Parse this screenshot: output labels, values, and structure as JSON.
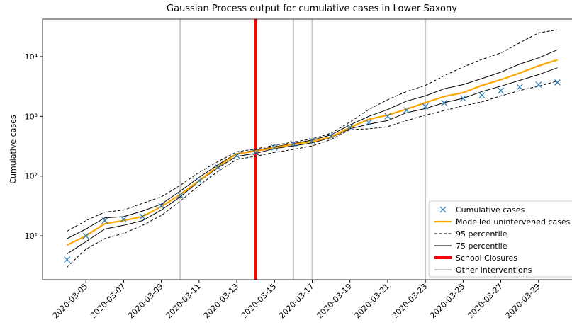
{
  "chart_data": {
    "type": "line",
    "title": "Gaussian Process output for cumulative cases in Lower Saxony",
    "ylabel": "Cumulative cases",
    "yscale": "log",
    "x": [
      "2020-03-04",
      "2020-03-05",
      "2020-03-06",
      "2020-03-07",
      "2020-03-08",
      "2020-03-09",
      "2020-03-10",
      "2020-03-11",
      "2020-03-12",
      "2020-03-13",
      "2020-03-14",
      "2020-03-15",
      "2020-03-16",
      "2020-03-17",
      "2020-03-18",
      "2020-03-19",
      "2020-03-20",
      "2020-03-21",
      "2020-03-22",
      "2020-03-23",
      "2020-03-24",
      "2020-03-25",
      "2020-03-26",
      "2020-03-27",
      "2020-03-28",
      "2020-03-29",
      "2020-03-30"
    ],
    "xticks": [
      "2020-03-05",
      "2020-03-07",
      "2020-03-09",
      "2020-03-11",
      "2020-03-13",
      "2020-03-15",
      "2020-03-17",
      "2020-03-19",
      "2020-03-21",
      "2020-03-23",
      "2020-03-25",
      "2020-03-27",
      "2020-03-29"
    ],
    "ylim": [
      1.85,
      42400
    ],
    "yticks": [
      {
        "value": 10,
        "label": "10¹"
      },
      {
        "value": 100,
        "label": "10²"
      },
      {
        "value": 1000,
        "label": "10³"
      },
      {
        "value": 10000,
        "label": "10⁴"
      }
    ],
    "series": [
      {
        "name": "Cumulative cases",
        "color": "#1f77b4",
        "marker": "x",
        "values": [
          4,
          10,
          18,
          19,
          21,
          32,
          48,
          84,
          140,
          220,
          250,
          300,
          350,
          390,
          470,
          660,
          790,
          1000,
          1270,
          1460,
          1680,
          2000,
          2250,
          2700,
          3100,
          3400,
          3700
        ]
      },
      {
        "name": "Modelled unintervened cases",
        "color": "orange",
        "linestyle": "solid",
        "values": [
          7,
          10,
          16,
          18,
          21,
          31,
          49,
          84,
          145,
          235,
          263,
          300,
          340,
          380,
          450,
          650,
          890,
          1050,
          1320,
          1700,
          2150,
          2500,
          3300,
          4100,
          5300,
          7000,
          8800
        ]
      },
      {
        "name": "95 percentile",
        "color": "black",
        "linestyle": "dashed",
        "upper": [
          12,
          18,
          25,
          27,
          35,
          45,
          70,
          115,
          175,
          255,
          285,
          330,
          370,
          420,
          520,
          800,
          1300,
          1900,
          2600,
          3300,
          4800,
          6700,
          9000,
          11500,
          17000,
          25000,
          28000
        ],
        "lower": [
          3,
          6,
          9,
          11,
          15,
          22,
          38,
          70,
          120,
          190,
          215,
          250,
          280,
          320,
          410,
          600,
          620,
          670,
          850,
          1050,
          1250,
          1500,
          1750,
          2200,
          2700,
          3200,
          3900
        ]
      },
      {
        "name": "75 percentile",
        "color": "black",
        "linestyle": "solid",
        "upper": [
          9,
          13,
          20,
          21,
          26,
          34,
          56,
          95,
          155,
          240,
          270,
          310,
          350,
          400,
          490,
          720,
          1000,
          1300,
          1800,
          2200,
          2900,
          3400,
          4300,
          5500,
          7500,
          9500,
          13000
        ],
        "lower": [
          5,
          8,
          13,
          15,
          18,
          27,
          45,
          82,
          138,
          215,
          240,
          290,
          320,
          360,
          440,
          620,
          740,
          850,
          1150,
          1350,
          1700,
          2000,
          2600,
          3200,
          4000,
          5000,
          6500
        ]
      }
    ],
    "vlines": [
      {
        "name": "School Closures",
        "color": "red",
        "width": 4,
        "x": [
          "2020-03-14"
        ]
      },
      {
        "name": "Other interventions",
        "color": "#c8c8c8",
        "width": 2,
        "x": [
          "2020-03-10",
          "2020-03-16",
          "2020-03-17",
          "2020-03-23"
        ]
      }
    ],
    "legend": "lower right"
  }
}
